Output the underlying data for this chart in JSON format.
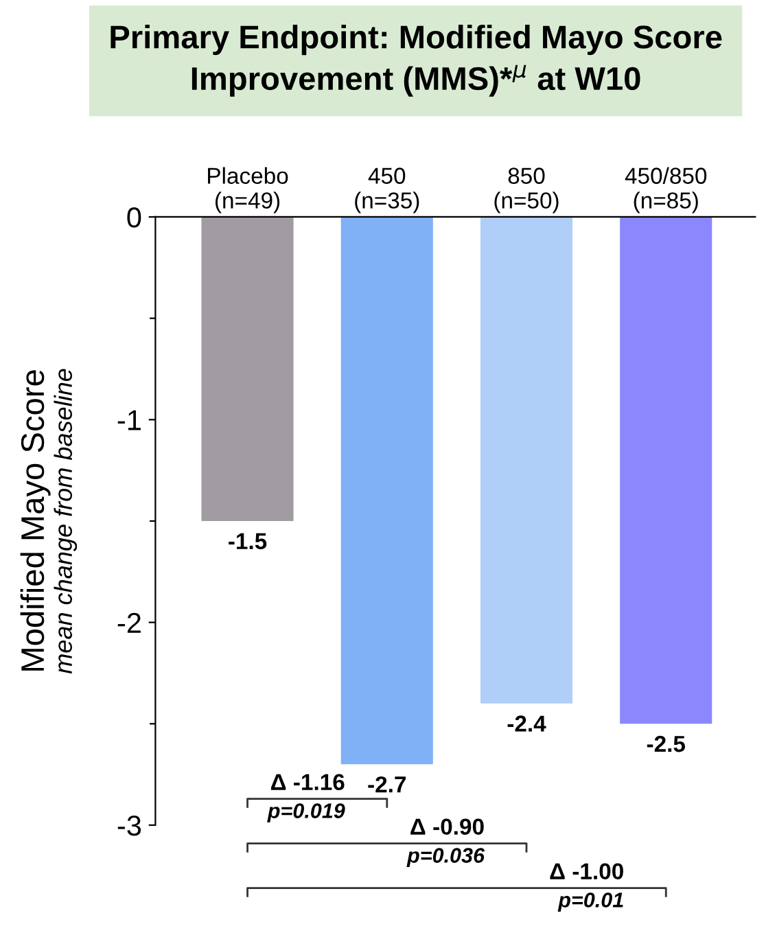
{
  "chart_data": {
    "type": "bar",
    "title": "Primary Endpoint: Modified Mayo Score Improvement (MMS)*$^{µ}$ at W10",
    "ylabel": "Modified Mayo Score\nmean change from baseline",
    "categories": [
      "Placebo\n(n=49)",
      "450\n(n=35)",
      "850\n(n=50)",
      "450/850\n(n=85)"
    ],
    "values": [
      -1.5,
      -2.7,
      -2.4,
      -2.5
    ],
    "colors": [
      "#a09ca2",
      "#80b0f5",
      "#b0cff8",
      "#8a88fb"
    ],
    "ylim": [
      -3,
      0
    ],
    "yticks": [
      0,
      {
        "value": -0.5,
        "label": null
      },
      -1,
      {
        "value": -1.5,
        "label": null
      },
      -2,
      {
        "value": -2.5,
        "label": null
      },
      -3
    ],
    "data_labels": true,
    "grid": false,
    "annotations": [
      "Δ -1.16\np=0.019",
      "Δ -0.90\np=0.036",
      "Δ -1.00\np=0.01"
    ]
  }
}
